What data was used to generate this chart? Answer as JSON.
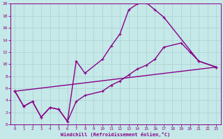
{
  "xlabel": "Windchill (Refroidissement éolien,°C)",
  "bg_color": "#c5e8e8",
  "grid_color": "#aad0d0",
  "line_color": "#880088",
  "xlim": [
    -0.5,
    23.5
  ],
  "ylim": [
    0,
    20
  ],
  "xticks": [
    0,
    1,
    2,
    3,
    4,
    5,
    6,
    7,
    8,
    9,
    10,
    11,
    12,
    13,
    14,
    15,
    16,
    17,
    18,
    19,
    20,
    21,
    22,
    23
  ],
  "yticks": [
    0,
    2,
    4,
    6,
    8,
    10,
    12,
    14,
    16,
    18,
    20
  ],
  "line1_x": [
    0,
    1,
    2,
    3,
    4,
    5,
    6,
    7,
    8,
    10,
    11,
    12,
    13,
    14,
    15,
    16,
    17,
    21,
    23
  ],
  "line1_y": [
    5.5,
    3.0,
    3.8,
    1.2,
    2.8,
    2.5,
    0.5,
    10.5,
    8.5,
    10.8,
    13.0,
    15.0,
    19.0,
    20.0,
    20.2,
    19.0,
    17.8,
    10.5,
    9.5
  ],
  "line2_x": [
    0,
    1,
    2,
    3,
    4,
    5,
    6,
    7,
    8,
    10,
    11,
    12,
    13,
    14,
    15,
    16,
    17,
    19,
    20,
    21,
    23
  ],
  "line2_y": [
    5.5,
    3.0,
    3.8,
    1.2,
    2.8,
    2.5,
    0.5,
    3.8,
    4.8,
    5.5,
    6.5,
    7.2,
    8.2,
    9.2,
    9.8,
    10.8,
    12.8,
    13.5,
    12.0,
    10.5,
    9.5
  ],
  "line3_x": [
    0,
    23
  ],
  "line3_y": [
    5.5,
    9.5
  ],
  "markersize": 3.5,
  "linewidth": 1.0
}
